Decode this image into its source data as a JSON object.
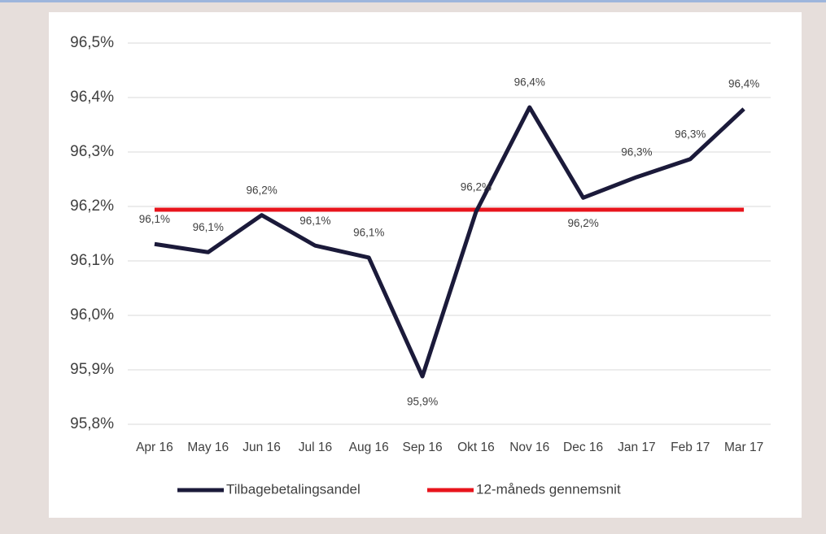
{
  "chart_data": {
    "type": "line",
    "categories": [
      "Apr 16",
      "May 16",
      "Jun 16",
      "Jul 16",
      "Aug 16",
      "Sep 16",
      "Okt 16",
      "Nov 16",
      "Dec 16",
      "Jan 17",
      "Feb 17",
      "Mar 17"
    ],
    "series": [
      {
        "name": "Tilbagebetalingsandel",
        "color": "#1b1a3a",
        "values": [
          96.131,
          96.116,
          96.184,
          96.128,
          96.106,
          95.888,
          96.19,
          96.382,
          96.216,
          96.254,
          96.287,
          96.379
        ],
        "value_labels": [
          "96,1%",
          "96,1%",
          "96,2%",
          "96,1%",
          "96,1%",
          "95,9%",
          "96,2%",
          "96,4%",
          "96,2%",
          "96,3%",
          "96,3%",
          "96,4%"
        ]
      },
      {
        "name": "12-måneds gennemsnit",
        "color": "#e8141c",
        "values": [
          96.194,
          96.194,
          96.194,
          96.194,
          96.194,
          96.194,
          96.194,
          96.194,
          96.194,
          96.194,
          96.194,
          96.194
        ]
      }
    ],
    "ylim": [
      95.8,
      96.5
    ],
    "yticks": [
      {
        "value": 95.8,
        "label": "95,8%"
      },
      {
        "value": 95.9,
        "label": "95,9%"
      },
      {
        "value": 96.0,
        "label": "96,0%"
      },
      {
        "value": 96.1,
        "label": "96,1%"
      },
      {
        "value": 96.2,
        "label": "96,2%"
      },
      {
        "value": 96.3,
        "label": "96,3%"
      },
      {
        "value": 96.4,
        "label": "96,4%"
      },
      {
        "value": 96.5,
        "label": "96,5%"
      }
    ],
    "grid": true,
    "legend": "bottom"
  }
}
